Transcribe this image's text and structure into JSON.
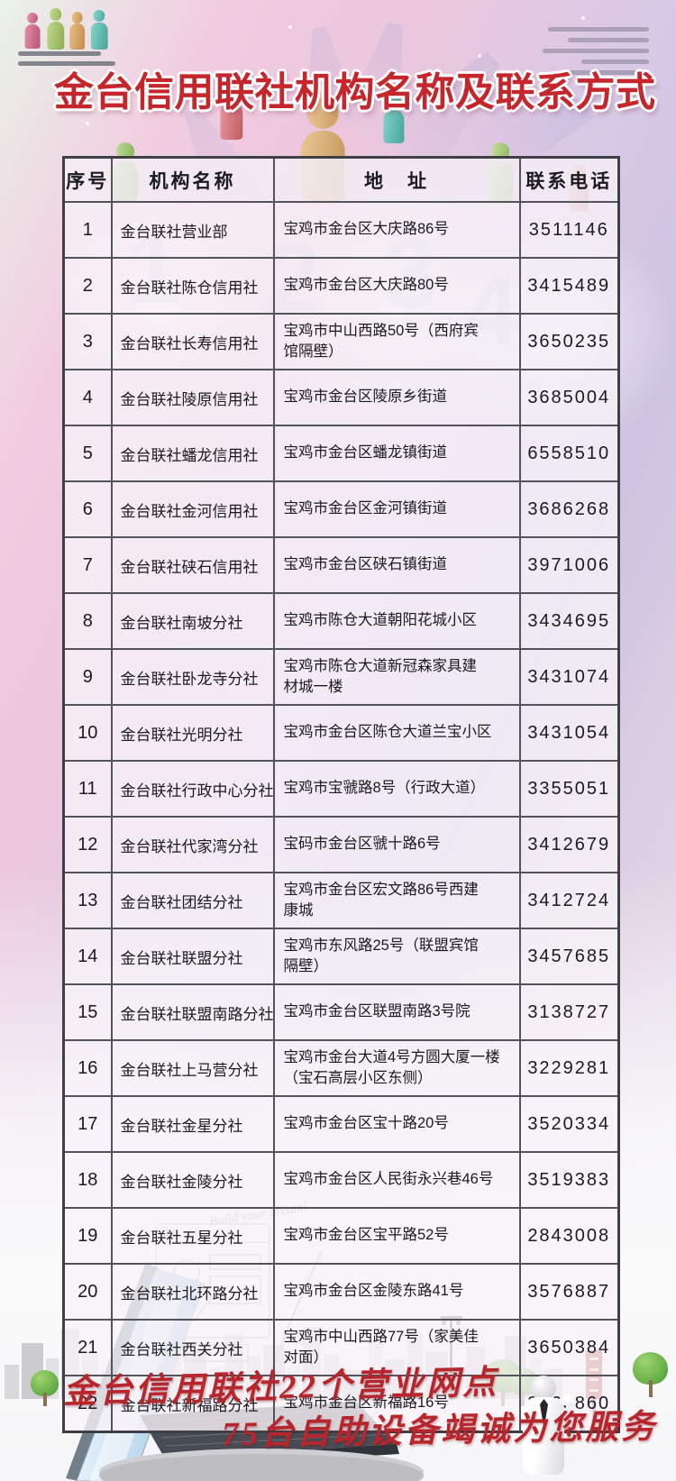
{
  "title": "金台信用联社机构名称及联系方式",
  "table": {
    "headers": {
      "index": "序号",
      "name": "机构名称",
      "address": "地　址",
      "phone": "联系电话"
    },
    "rows": [
      {
        "index": "1",
        "name": "金台联社营业部",
        "address": "宝鸡市金台区大庆路86号",
        "phone": "3511146"
      },
      {
        "index": "2",
        "name": "金台联社陈仓信用社",
        "address": "宝鸡市金台区大庆路80号",
        "phone": "3415489"
      },
      {
        "index": "3",
        "name": "金台联社长寿信用社",
        "address": "宝鸡市中山西路50号（西府宾\n馆隔壁）",
        "phone": "3650235"
      },
      {
        "index": "4",
        "name": "金台联社陵原信用社",
        "address": "宝鸡市金台区陵原乡街道",
        "phone": "3685004"
      },
      {
        "index": "5",
        "name": "金台联社蟠龙信用社",
        "address": "宝鸡市金台区蟠龙镇街道",
        "phone": "6558510"
      },
      {
        "index": "6",
        "name": "金台联社金河信用社",
        "address": "宝鸡市金台区金河镇街道",
        "phone": "3686268"
      },
      {
        "index": "7",
        "name": "金台联社硖石信用社",
        "address": "宝鸡市金台区硖石镇街道",
        "phone": "3971006"
      },
      {
        "index": "8",
        "name": "金台联社南坡分社",
        "address": "宝鸡市陈仓大道朝阳花城小区",
        "phone": "3434695"
      },
      {
        "index": "9",
        "name": "金台联社卧龙寺分社",
        "address": "宝鸡市陈仓大道新冠森家具建\n材城一楼",
        "phone": "3431074"
      },
      {
        "index": "10",
        "name": "金台联社光明分社",
        "address": "宝鸡市金台区陈仓大道兰宝小区",
        "phone": "3431054"
      },
      {
        "index": "11",
        "name": "金台联社行政中心分社",
        "address": "宝鸡市宝虢路8号（行政大道）",
        "phone": "3355051"
      },
      {
        "index": "12",
        "name": "金台联社代家湾分社",
        "address": "宝码市金台区虢十路6号",
        "phone": "3412679"
      },
      {
        "index": "13",
        "name": "金台联社团结分社",
        "address": "宝鸡市金台区宏文路86号西建\n康城",
        "phone": "3412724"
      },
      {
        "index": "14",
        "name": "金台联社联盟分社",
        "address": "宝鸡市东风路25号（联盟宾馆\n隔壁）",
        "phone": "3457685"
      },
      {
        "index": "15",
        "name": "金台联社联盟南路分社",
        "address": "宝鸡市金台区联盟南路3号院",
        "phone": "3138727"
      },
      {
        "index": "16",
        "name": "金台联社上马营分社",
        "address": "宝鸡市金台大道4号方圆大厦一楼\n（宝石高层小区东侧）",
        "phone": "3229281"
      },
      {
        "index": "17",
        "name": "金台联社金星分社",
        "address": "宝鸡市金台区宝十路20号",
        "phone": "3520334"
      },
      {
        "index": "18",
        "name": "金台联社金陵分社",
        "address": "宝鸡市金台区人民街永兴巷46号",
        "phone": "3519383"
      },
      {
        "index": "19",
        "name": "金台联社五星分社",
        "address": "宝鸡市金台区宝平路52号",
        "phone": "2843008"
      },
      {
        "index": "20",
        "name": "金台联社北环路分社",
        "address": "宝鸡市金台区金陵东路41号",
        "phone": "3576887"
      },
      {
        "index": "21",
        "name": "金台联社西关分社",
        "address": "宝鸡市中山西路77号（家美佳\n对面）",
        "phone": "3650384"
      },
      {
        "index": "22",
        "name": "金台联社新福路分社",
        "address": "宝鸡市金台区新福路16号",
        "phone": "3663860"
      }
    ]
  },
  "footer": {
    "line1": "金台信用联社22个营业网点",
    "line2": "75台自助设备竭诚为您服务"
  },
  "decorations": {
    "doodle_text": "Build your dream!",
    "title_color": "#c5262c",
    "slogan_color": "#b7262c"
  }
}
